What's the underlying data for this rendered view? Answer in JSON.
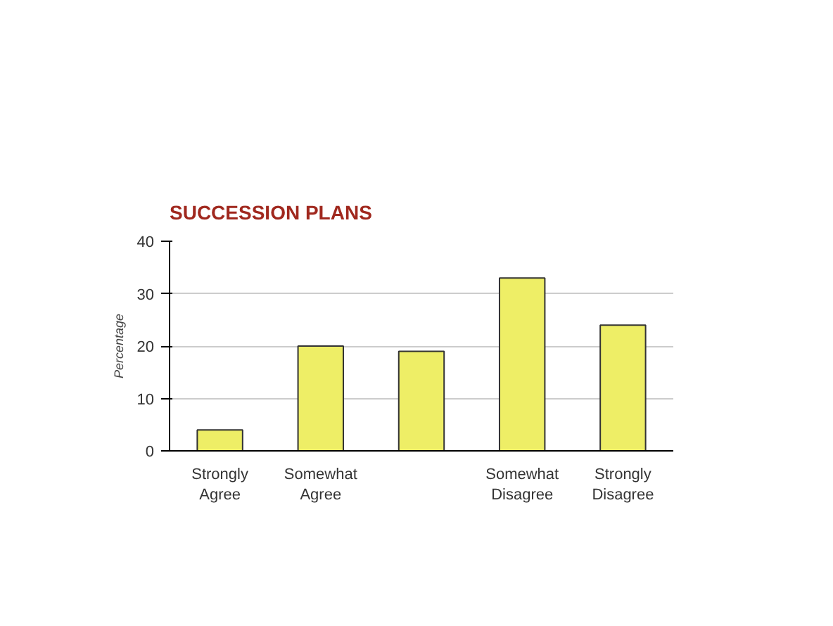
{
  "chart_data": {
    "type": "bar",
    "title": "SUCCESSION PLANS",
    "ylabel": "Percentage",
    "categories": [
      "Strongly Agree",
      "Somewhat Agree",
      null,
      "Somewhat Disagree",
      "Strongly Disagree"
    ],
    "values": [
      4,
      20,
      19,
      33,
      24
    ],
    "color": "#eeee66",
    "ylim": [
      0,
      40
    ],
    "yticks": [
      0,
      10,
      20,
      30,
      40
    ],
    "grid": "y"
  }
}
